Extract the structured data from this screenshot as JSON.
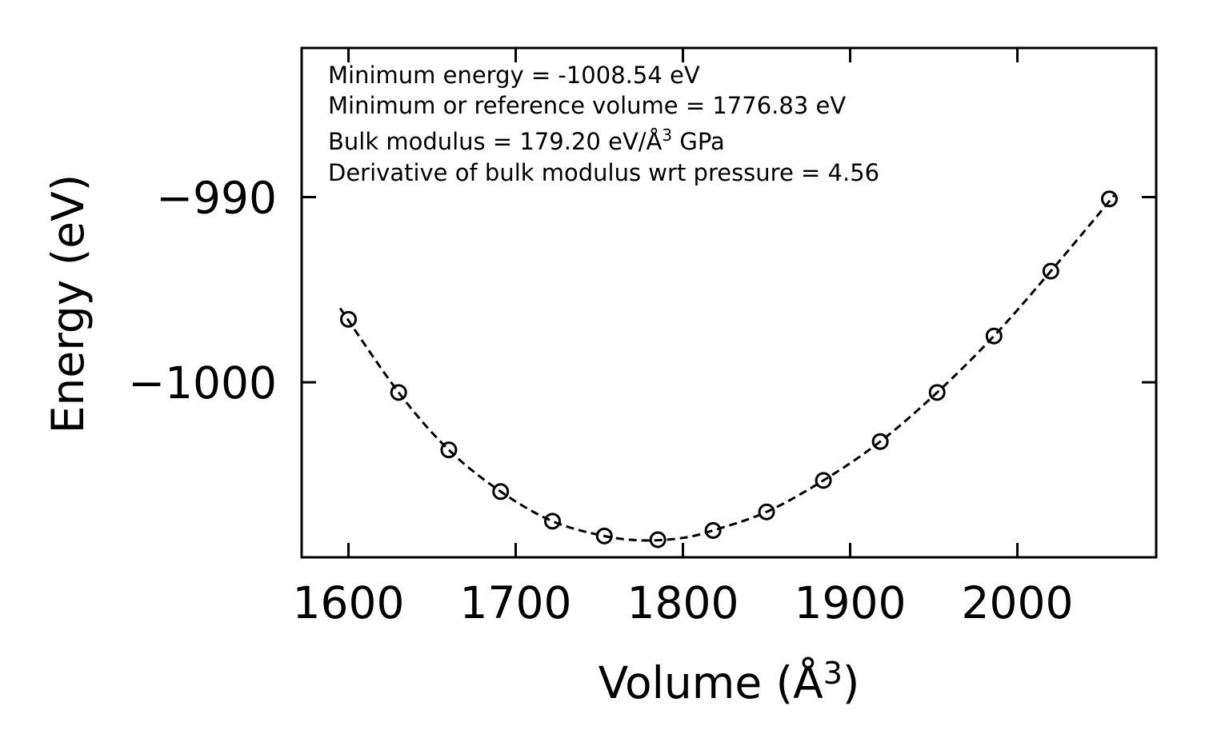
{
  "chart_data": {
    "type": "scatter",
    "title": "",
    "xlabel": "Volume (Å",
    "xlabel_sup": "3",
    "xlabel_end": ")",
    "ylabel": "Energy (eV)",
    "xlim": [
      1572,
      2083
    ],
    "ylim": [
      -1009.45,
      -981.95
    ],
    "xticks": [
      1600,
      1700,
      1800,
      1900,
      2000
    ],
    "xtick_labels": [
      "1600",
      "1700",
      "1800",
      "1900",
      "2000"
    ],
    "yticks": [
      -990,
      -1000
    ],
    "ytick_labels": [
      "−990",
      "−1000"
    ],
    "series": [
      {
        "name": "data",
        "marker": "open-circle",
        "x": [
          1600,
          1630,
          1660,
          1691,
          1722,
          1753,
          1785,
          1818,
          1850,
          1884,
          1918,
          1952,
          1986,
          2020,
          2055
        ],
        "y": [
          -996.6,
          -1000.55,
          -1003.65,
          -1005.9,
          -1007.5,
          -1008.3,
          -1008.5,
          -1008.0,
          -1007.0,
          -1005.3,
          -1003.2,
          -1000.55,
          -997.5,
          -994.0,
          -990.1
        ]
      },
      {
        "name": "fit",
        "style": "dashed-line",
        "x": [
          1595,
          1630,
          1660,
          1691,
          1722,
          1753,
          1777,
          1800,
          1818,
          1850,
          1884,
          1918,
          1952,
          1986,
          2020,
          2058
        ],
        "y": [
          -996.0,
          -1000.55,
          -1003.65,
          -1005.9,
          -1007.5,
          -1008.3,
          -1008.54,
          -1008.4,
          -1008.0,
          -1007.0,
          -1005.3,
          -1003.2,
          -1000.55,
          -997.5,
          -994.0,
          -989.9
        ]
      }
    ],
    "annotations": [
      {
        "text": "Minimum energy = -1008.54 eV"
      },
      {
        "text": "Minimum or reference volume = 1776.83 eV"
      },
      {
        "text": "Bulk modulus = 179.20 eV/Å",
        "sup": "3",
        "suffix": " GPa"
      },
      {
        "text": "Derivative of bulk modulus wrt pressure = 4.56"
      }
    ],
    "grid": false,
    "legend": "none"
  }
}
